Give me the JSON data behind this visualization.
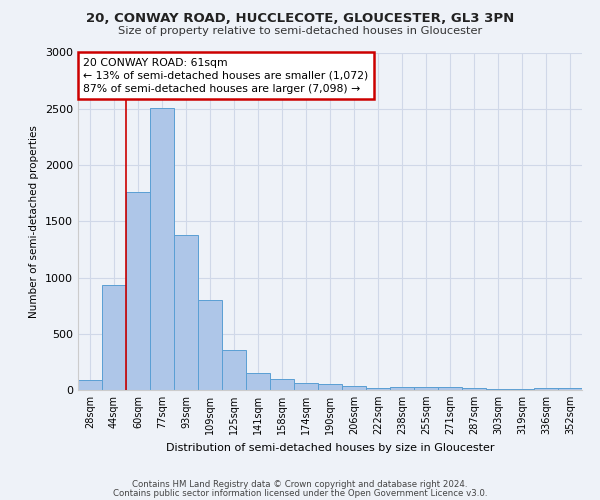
{
  "title": "20, CONWAY ROAD, HUCCLECOTE, GLOUCESTER, GL3 3PN",
  "subtitle": "Size of property relative to semi-detached houses in Gloucester",
  "xlabel": "Distribution of semi-detached houses by size in Gloucester",
  "ylabel": "Number of semi-detached properties",
  "categories": [
    "28sqm",
    "44sqm",
    "60sqm",
    "77sqm",
    "93sqm",
    "109sqm",
    "125sqm",
    "141sqm",
    "158sqm",
    "174sqm",
    "190sqm",
    "206sqm",
    "222sqm",
    "238sqm",
    "255sqm",
    "271sqm",
    "287sqm",
    "303sqm",
    "319sqm",
    "336sqm",
    "352sqm"
  ],
  "values": [
    90,
    930,
    1760,
    2510,
    1380,
    800,
    360,
    155,
    100,
    60,
    55,
    35,
    20,
    30,
    25,
    28,
    20,
    10,
    10,
    18,
    20
  ],
  "bar_color": "#aec6e8",
  "bar_edge_color": "#5a9fd4",
  "property_sqm": 61,
  "pct_smaller": 13,
  "pct_larger": 87,
  "n_smaller": 1072,
  "n_larger": 7098,
  "annotation_box_color": "#ffffff",
  "annotation_box_edge": "#cc0000",
  "property_line_color": "#cc0000",
  "grid_color": "#d0d8e8",
  "background_color": "#eef2f8",
  "ylim": [
    0,
    3000
  ],
  "yticks": [
    0,
    500,
    1000,
    1500,
    2000,
    2500,
    3000
  ],
  "footer1": "Contains HM Land Registry data © Crown copyright and database right 2024.",
  "footer2": "Contains public sector information licensed under the Open Government Licence v3.0."
}
